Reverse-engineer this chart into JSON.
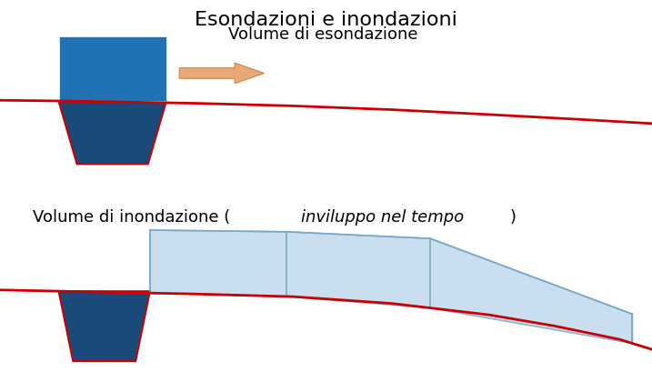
{
  "title": "Esondazioni e inondazioni",
  "title_fontsize": 16,
  "label1": "Volume di esondazione",
  "label2_normal1": "Volume di inondazione (",
  "label2_italic": "inviluppo nel tempo",
  "label2_normal2": ")",
  "label_fontsize": 13,
  "bg_color": "#ffffff",
  "dark_blue": "#2171b5",
  "darker_blue": "#1a4a7a",
  "light_blue": "#b8d4ea",
  "lighter_blue": "#c9dff0",
  "red_line": "#cc0000",
  "arrow_color": "#e8a878",
  "arrow_edge": "#c88848"
}
